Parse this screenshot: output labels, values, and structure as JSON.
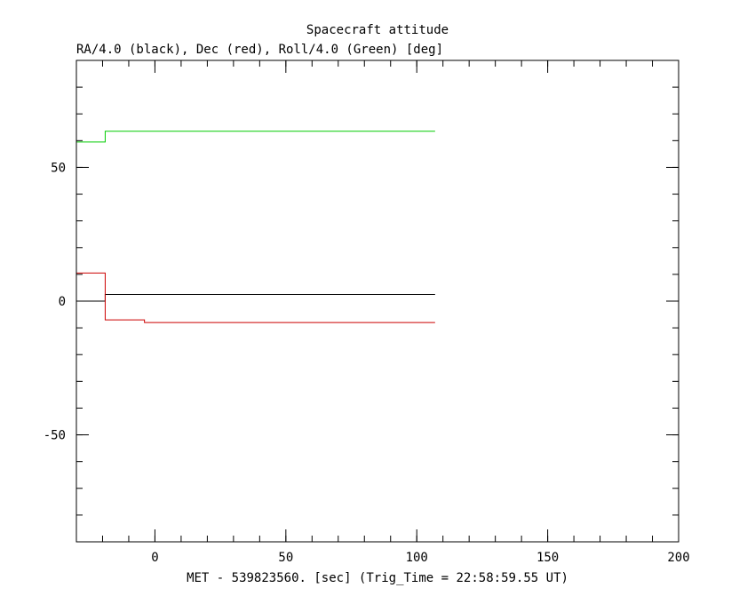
{
  "chart_data": {
    "type": "line",
    "title": "Spacecraft attitude",
    "subtitle": "RA/4.0 (black), Dec (red), Roll/4.0 (Green) [deg]",
    "xlabel": "MET - 539823560. [sec] (Trig_Time = 22:58:59.55 UT)",
    "ylabel": "",
    "xlim": [
      -30,
      200
    ],
    "ylim": [
      -90,
      90
    ],
    "x_ticks": [
      0,
      50,
      100,
      150,
      200
    ],
    "y_ticks": [
      -50,
      0,
      50
    ],
    "x_minor_step": 10,
    "y_minor_step": 10,
    "grid": false,
    "series": [
      {
        "color": "#000000",
        "step": true,
        "x": [
          -30,
          -19,
          107
        ],
        "y": [
          0,
          2.5,
          2.5
        ]
      },
      {
        "color": "#cc0000",
        "step": true,
        "x": [
          -30,
          -19,
          -4,
          107
        ],
        "y": [
          10.5,
          -7,
          -8,
          -8
        ]
      },
      {
        "color": "#00cc00",
        "step": true,
        "x": [
          -30,
          -19,
          107
        ],
        "y": [
          59.5,
          63.5,
          63.5
        ]
      }
    ]
  }
}
